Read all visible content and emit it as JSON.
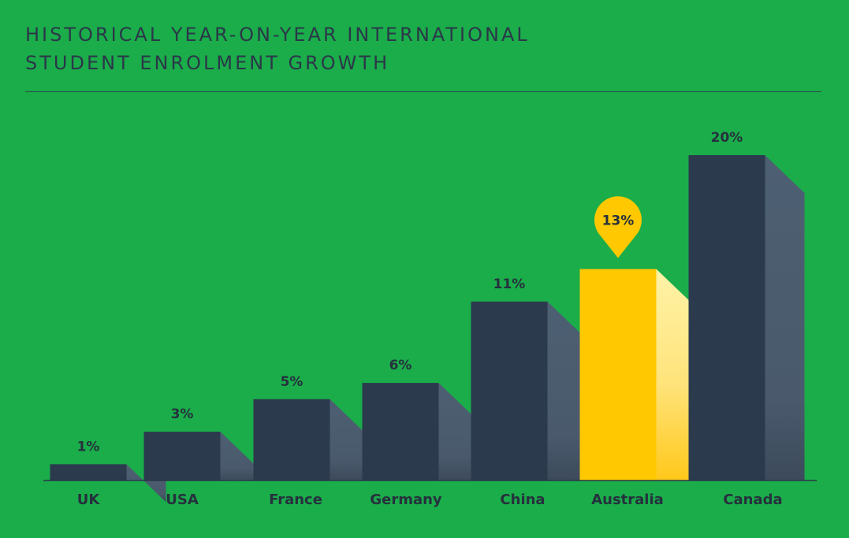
{
  "title": {
    "line1": "HISTORICAL YEAR-ON-YEAR INTERNATIONAL",
    "line2": "STUDENT ENROLMENT GROWTH"
  },
  "colors": {
    "background": "#1aad4a",
    "bar": "#2b3a4d",
    "highlight": "#ffc800",
    "text": "#26303d"
  },
  "chart_data": {
    "type": "bar",
    "title": "HISTORICAL YEAR-ON-YEAR INTERNATIONAL STUDENT ENROLMENT GROWTH",
    "categories": [
      "UK",
      "USA",
      "France",
      "Germany",
      "China",
      "Australia",
      "Canada"
    ],
    "values": [
      1,
      3,
      5,
      6,
      11,
      13,
      20
    ],
    "value_labels": [
      "1%",
      "3%",
      "5%",
      "6%",
      "11%",
      "13%",
      "20%"
    ],
    "highlight": "Australia",
    "unit": "%",
    "ylim": [
      0,
      20
    ],
    "xlabel": "",
    "ylabel": "",
    "grid": false,
    "legend": "none"
  }
}
